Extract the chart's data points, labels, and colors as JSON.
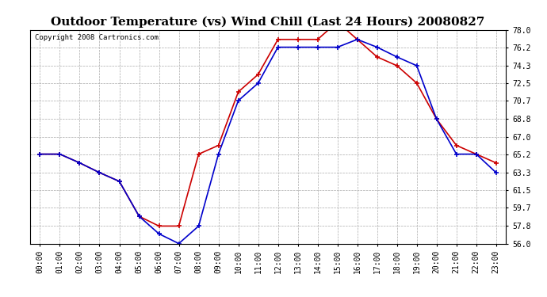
{
  "title": "Outdoor Temperature (vs) Wind Chill (Last 24 Hours) 20080827",
  "copyright": "Copyright 2008 Cartronics.com",
  "hours": [
    "00:00",
    "01:00",
    "02:00",
    "03:00",
    "04:00",
    "05:00",
    "06:00",
    "07:00",
    "08:00",
    "09:00",
    "10:00",
    "11:00",
    "12:00",
    "13:00",
    "14:00",
    "15:00",
    "16:00",
    "17:00",
    "18:00",
    "19:00",
    "20:00",
    "21:00",
    "22:00",
    "23:00"
  ],
  "temp": [
    65.2,
    65.2,
    64.3,
    63.3,
    62.4,
    58.8,
    57.8,
    57.8,
    65.2,
    66.1,
    71.6,
    73.4,
    77.0,
    77.0,
    77.0,
    78.8,
    77.0,
    75.2,
    74.3,
    72.5,
    68.8,
    66.1,
    65.2,
    64.3
  ],
  "windchill": [
    65.2,
    65.2,
    64.3,
    63.3,
    62.4,
    58.8,
    57.0,
    56.0,
    57.8,
    65.2,
    70.7,
    72.5,
    76.2,
    76.2,
    76.2,
    76.2,
    77.0,
    76.2,
    75.2,
    74.3,
    68.8,
    65.2,
    65.2,
    63.3
  ],
  "temp_color": "#cc0000",
  "windchill_color": "#0000cc",
  "yticks": [
    56.0,
    57.8,
    59.7,
    61.5,
    63.3,
    65.2,
    67.0,
    68.8,
    70.7,
    72.5,
    74.3,
    76.2,
    78.0
  ],
  "ymin": 56.0,
  "ymax": 78.0,
  "bg_color": "#ffffff",
  "grid_color": "#aaaaaa",
  "marker": "+",
  "markersize": 5,
  "linewidth": 1.2,
  "title_fontsize": 11,
  "copyright_fontsize": 6.5,
  "tick_fontsize": 7
}
